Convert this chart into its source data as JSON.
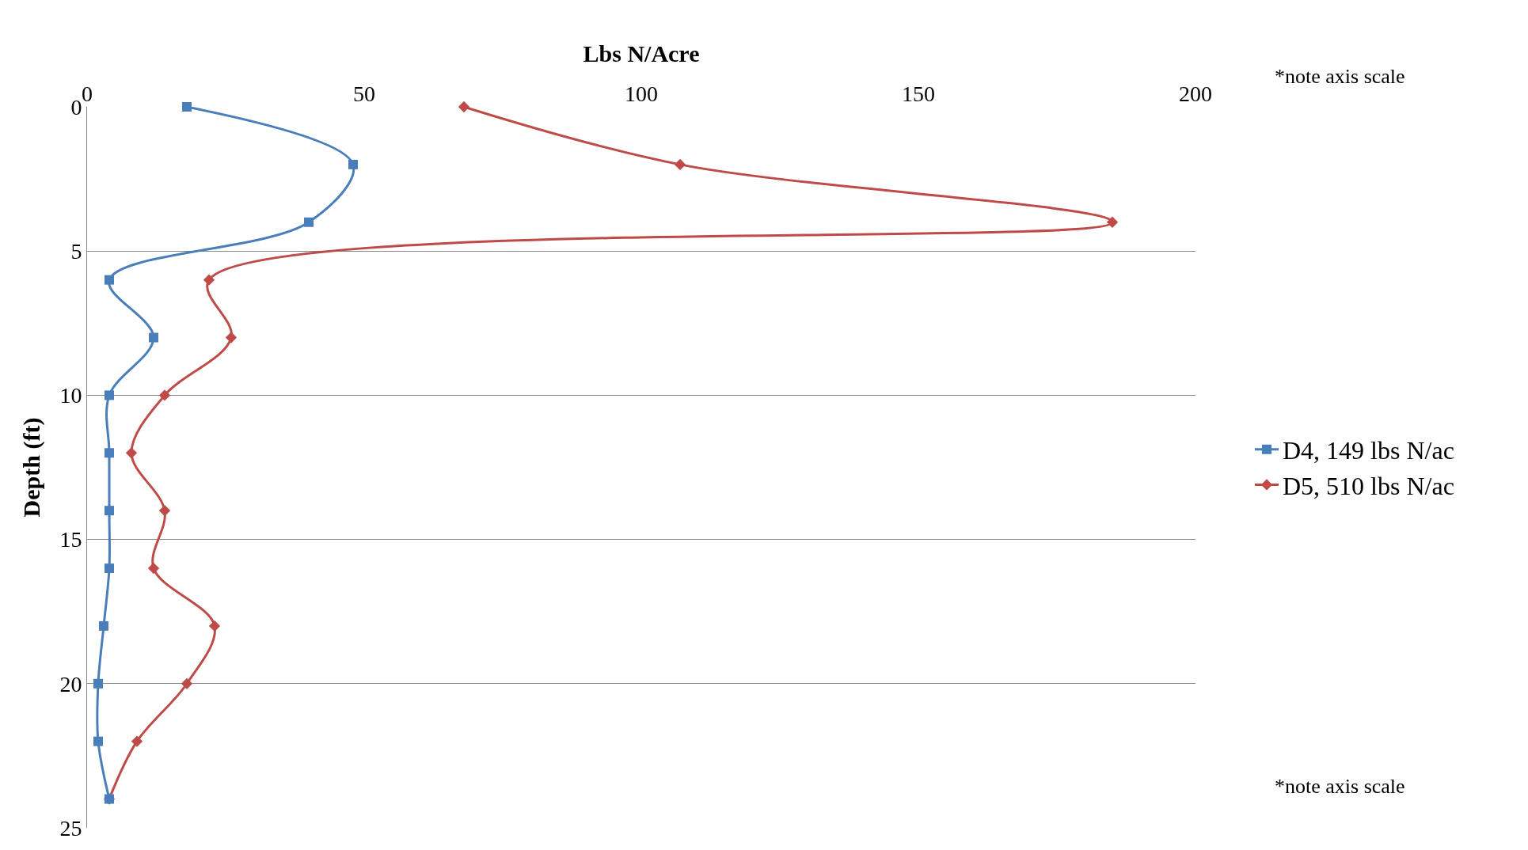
{
  "chart_data": {
    "type": "line",
    "xlabel": "Lbs N/Acre",
    "ylabel": "Depth (ft)",
    "xlim": [
      0,
      200
    ],
    "xticks": [
      0,
      50,
      100,
      150,
      200
    ],
    "ylim": [
      25,
      0
    ],
    "yticks": [
      0,
      5,
      10,
      15,
      20,
      25
    ],
    "grid": "y",
    "legend": "right",
    "line_style": "solid",
    "annotations": [
      "*note axis scale",
      "*note axis scale"
    ],
    "series": [
      {
        "name": "D4, 149 lbs N/ac",
        "color": "#4a7ebb",
        "marker": "square",
        "x": [
          18,
          48,
          40,
          4,
          12,
          4,
          4,
          4,
          4,
          3,
          2,
          2,
          4
        ],
        "values": [
          0,
          2,
          4,
          6,
          8,
          10,
          12,
          14,
          16,
          18,
          20,
          22,
          24
        ]
      },
      {
        "name": "D5, 510 lbs N/ac",
        "color": "#be4b48",
        "marker": "diamond",
        "x": [
          68,
          107,
          185,
          22,
          26,
          14,
          8,
          14,
          12,
          23,
          18,
          9,
          4
        ],
        "values": [
          0,
          2,
          4,
          6,
          8,
          10,
          12,
          14,
          16,
          18,
          20,
          22,
          24
        ]
      }
    ]
  }
}
